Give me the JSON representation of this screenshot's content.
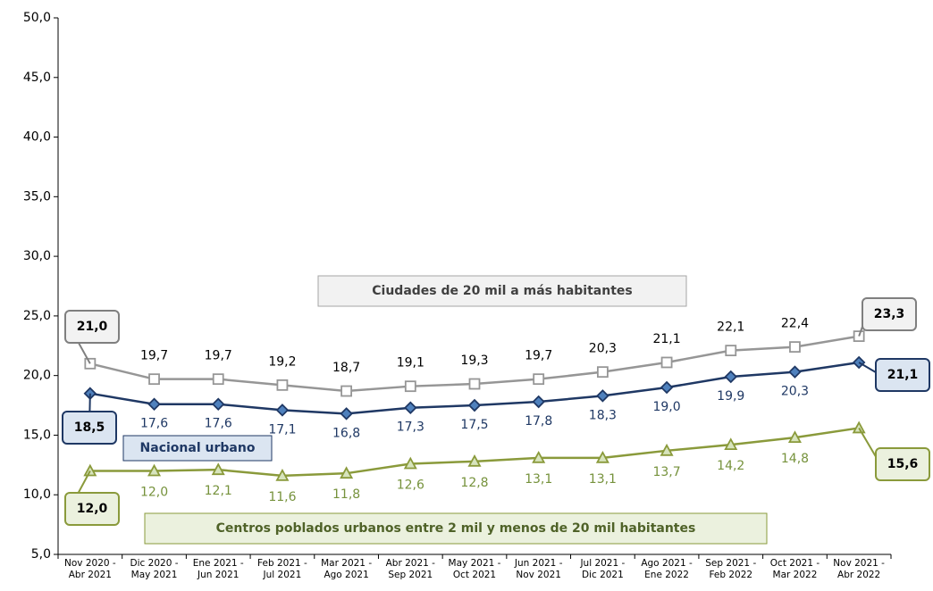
{
  "chart_data": {
    "type": "line",
    "categories": [
      "Nov 2020 -\nAbr 2021",
      "Dic 2020 -\nMay 2021",
      "Ene 2021 -\nJun 2021",
      "Feb 2021 -\nJul 2021",
      "Mar 2021 -\nAgo 2021",
      "Abr 2021 -\nSep 2021",
      "May 2021 -\nOct 2021",
      "Jun 2021 -\nNov 2021",
      "Jul 2021 -\nDic 2021",
      "Ago 2021 -\nEne 2022",
      "Sep 2021 -\nFeb 2022",
      "Oct 2021 -\nMar 2022",
      "Nov 2021 -\nAbr 2022"
    ],
    "ylim": [
      5,
      50
    ],
    "yticks": [
      {
        "value": 5,
        "label": "5,0"
      },
      {
        "value": 10,
        "label": "10,0"
      },
      {
        "value": 15,
        "label": "15,0"
      },
      {
        "value": 20,
        "label": "20,0"
      },
      {
        "value": 25,
        "label": "25,0"
      },
      {
        "value": 30,
        "label": "30,0"
      },
      {
        "value": 35,
        "label": "35,0"
      },
      {
        "value": 40,
        "label": "40,0"
      },
      {
        "value": 45,
        "label": "45,0"
      },
      {
        "value": 50,
        "label": "50,0"
      }
    ],
    "series": [
      {
        "name": "Ciudades de 20 mil a más habitantes",
        "color": "#969696",
        "marker": "square",
        "values": [
          21.0,
          19.7,
          19.7,
          19.2,
          18.7,
          19.1,
          19.3,
          19.7,
          20.3,
          21.1,
          22.1,
          22.4,
          23.3
        ],
        "value_labels": [
          "21,0",
          "19,7",
          "19,7",
          "19,2",
          "18,7",
          "19,1",
          "19,3",
          "19,7",
          "20,3",
          "21,1",
          "22,1",
          "22,4",
          "23,3"
        ]
      },
      {
        "name": "Nacional urbano",
        "color": "#1f3864",
        "marker": "diamond",
        "values": [
          18.5,
          17.6,
          17.6,
          17.1,
          16.8,
          17.3,
          17.5,
          17.8,
          18.3,
          19.0,
          19.9,
          20.3,
          21.1
        ],
        "value_labels": [
          "18,5",
          "17,6",
          "17,6",
          "17,1",
          "16,8",
          "17,3",
          "17,5",
          "17,8",
          "18,3",
          "19,0",
          "19,9",
          "20,3",
          "21,1"
        ]
      },
      {
        "name": "Centros poblados urbanos entre 2 mil y menos de 20 mil habitantes",
        "color": "#8a9a3b",
        "marker": "triangle",
        "values": [
          12.0,
          12.0,
          12.1,
          11.6,
          11.8,
          12.6,
          12.8,
          13.1,
          13.1,
          13.7,
          14.2,
          14.8,
          15.6
        ],
        "value_labels": [
          "12,0",
          "12,0",
          "12,1",
          "11,6",
          "11,8",
          "12,6",
          "12,8",
          "13,1",
          "13,1",
          "13,7",
          "14,2",
          "14,8",
          "15,6"
        ]
      }
    ]
  }
}
